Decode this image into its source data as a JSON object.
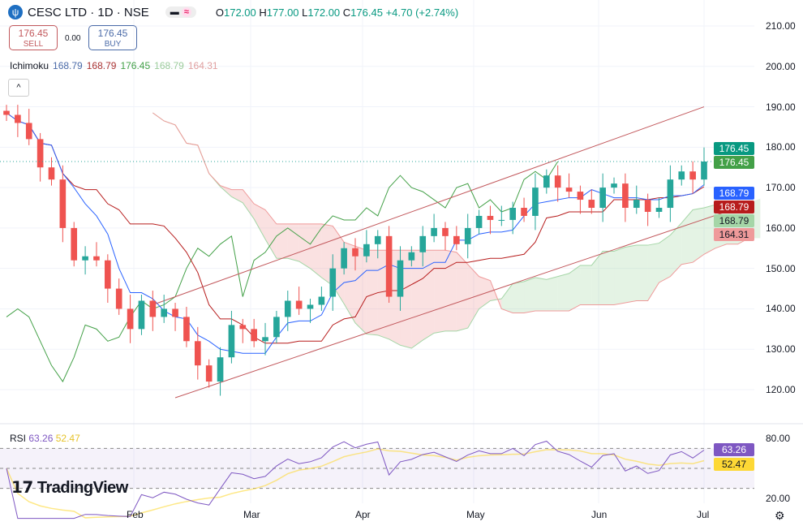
{
  "header": {
    "symbol": "CESC LTD · 1D · NSE",
    "logo_glyph": "ψ",
    "pill_a": "▬",
    "pill_b": "≈",
    "o_label": "O",
    "o": "172.00",
    "h_label": "H",
    "h": "177.00",
    "l_label": "L",
    "l": "172.00",
    "c_label": "C",
    "c": "176.45",
    "change": "+4.70 (+2.74%)"
  },
  "trade": {
    "sell_price": "176.45",
    "sell_label": "SELL",
    "spread": "0.00",
    "buy_price": "176.45",
    "buy_label": "BUY"
  },
  "ichimoku": {
    "label": "Ichimoku",
    "v1": "168.79",
    "v2": "168.79",
    "v3": "176.45",
    "v4": "168.79",
    "v5": "164.31"
  },
  "collapse_glyph": "^",
  "rsi": {
    "label": "RSI",
    "value": "63.26",
    "ma": "52.47"
  },
  "brand": "TradingView",
  "price_axis": [
    "210.00",
    "200.00",
    "190.00",
    "180.00",
    "170.00",
    "160.00",
    "150.00",
    "140.00",
    "130.00",
    "120.00"
  ],
  "rsi_axis": [
    "80.00",
    "20.00"
  ],
  "time_axis": [
    "Feb",
    "Mar",
    "Apr",
    "May",
    "Jun",
    "Jul"
  ],
  "price_tags": [
    {
      "text": "176.45",
      "bg": "#089981",
      "fg": "#fff"
    },
    {
      "text": "176.45",
      "bg": "#43a047",
      "fg": "#fff"
    },
    {
      "text": "168.79",
      "bg": "#2962ff",
      "fg": "#fff"
    },
    {
      "text": "168.79",
      "bg": "#b71c1c",
      "fg": "#fff"
    },
    {
      "text": "168.79",
      "bg": "#a5d6a7",
      "fg": "#131722"
    },
    {
      "text": "164.31",
      "bg": "#ef9a9a",
      "fg": "#131722"
    }
  ],
  "rsi_tags": [
    {
      "text": "63.26",
      "bg": "#7e57c2",
      "fg": "#fff"
    },
    {
      "text": "52.47",
      "bg": "#fdd835",
      "fg": "#131722"
    }
  ],
  "chart_data": {
    "type": "candlestick",
    "closes": [
      188,
      186,
      182,
      175,
      172,
      160,
      152,
      153,
      152,
      145,
      140,
      135,
      142,
      138,
      140,
      138,
      132,
      126,
      122,
      128,
      136,
      135,
      132,
      133,
      138,
      142,
      140,
      141,
      143,
      150,
      155,
      153,
      156,
      158,
      143,
      152,
      154,
      158,
      160,
      158,
      156,
      160,
      163,
      162,
      162,
      165,
      163,
      170,
      173,
      170,
      169,
      167,
      165,
      170,
      171,
      165,
      167,
      164,
      165,
      172,
      174,
      172,
      176.45
    ],
    "ylim": [
      115,
      212
    ],
    "channel_upper": {
      "from": [
        13,
        141
      ],
      "to": [
        62,
        190
      ]
    },
    "channel_lower": {
      "from": [
        15,
        118
      ],
      "to": [
        65,
        165
      ]
    },
    "colors": {
      "up": "#26a69a",
      "down": "#ef5350",
      "tenkan": "#2962ff",
      "kijun": "#b71c1c",
      "lagging": "#43a047",
      "cloud_up": "#a5d6a7",
      "cloud_down": "#ef9a9a",
      "rsi": "#7e57c2",
      "rsi_ma": "#fdd835",
      "channel": "#c2585c"
    }
  }
}
